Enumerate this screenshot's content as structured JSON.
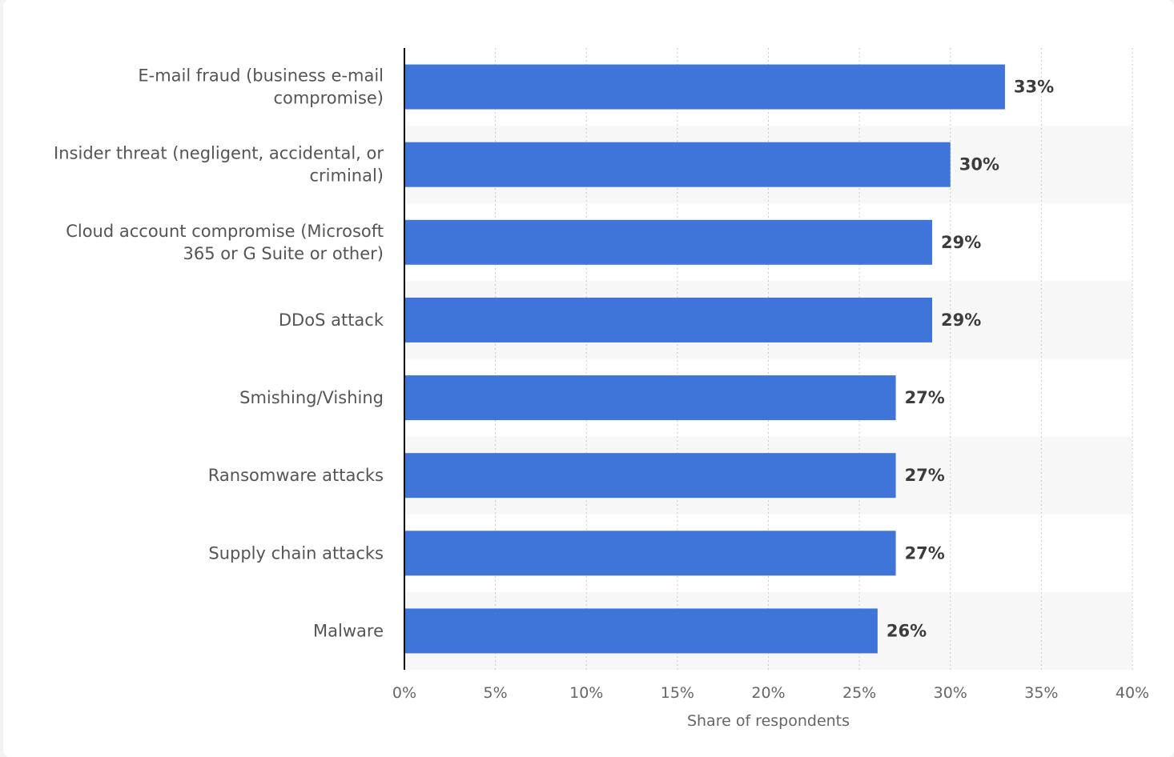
{
  "chart_data": {
    "type": "bar",
    "orientation": "horizontal",
    "categories": [
      "E-mail fraud (business e-mail compromise)",
      "Insider threat (negligent, accidental, or criminal)",
      "Cloud account compromise (Microsoft 365 or G Suite or other)",
      "DDoS attack",
      "Smishing/Vishing",
      "Ransomware attacks",
      "Supply chain attacks",
      "Malware"
    ],
    "category_lines": [
      [
        "E-mail fraud (business e-mail",
        "compromise)"
      ],
      [
        "Insider threat (negligent, accidental, or",
        "criminal)"
      ],
      [
        "Cloud account compromise (Microsoft",
        "365 or G Suite or other)"
      ],
      [
        "DDoS attack"
      ],
      [
        "Smishing/Vishing"
      ],
      [
        "Ransomware attacks"
      ],
      [
        "Supply chain attacks"
      ],
      [
        "Malware"
      ]
    ],
    "values": [
      33,
      30,
      29,
      29,
      27,
      27,
      27,
      26
    ],
    "value_labels": [
      "33%",
      "30%",
      "29%",
      "29%",
      "27%",
      "27%",
      "27%",
      "26%"
    ],
    "ticks": [
      0,
      5,
      10,
      15,
      20,
      25,
      30,
      35,
      40
    ],
    "tick_labels": [
      "0%",
      "5%",
      "10%",
      "15%",
      "20%",
      "25%",
      "30%",
      "35%",
      "40%"
    ],
    "xlabel": "Share of respondents",
    "xlim": [
      0,
      40
    ],
    "grid": true,
    "colors": {
      "bar": "#3f74d8",
      "band": "#f7f7f7",
      "grid": "#cccccc",
      "axis": "#000000"
    }
  }
}
